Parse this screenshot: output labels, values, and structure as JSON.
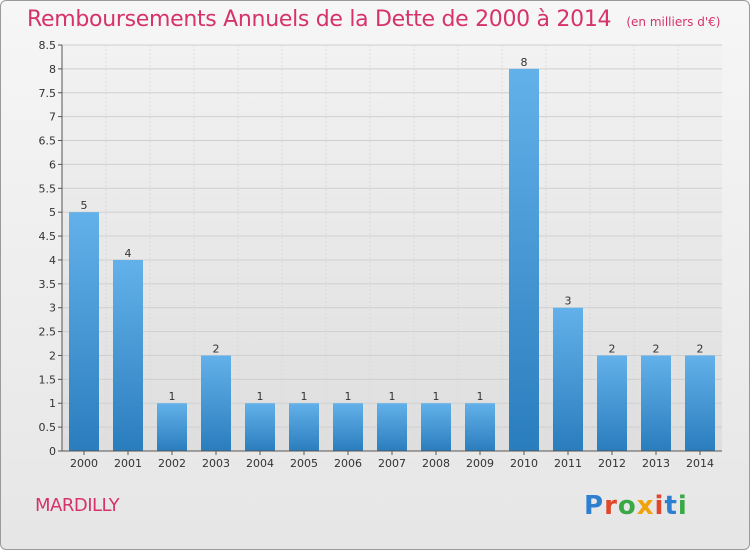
{
  "title": "Remboursements Annuels de la Dette de 2000 à 2014",
  "unit": "(en milliers d'€)",
  "location": "MARDILLY",
  "logo_text": "Proxiti",
  "colors": {
    "accent": "#d6336c",
    "bar_top": "#63b1ea",
    "bar_bottom": "#2a7dbd",
    "logo": [
      "#2f7fd0",
      "#e2472c",
      "#39a845",
      "#f0a30a",
      "#e2472c",
      "#2f7fd0",
      "#39a845"
    ]
  },
  "chart_data": {
    "type": "bar",
    "title": "Remboursements Annuels de la Dette de 2000 à 2014",
    "xlabel": "",
    "ylabel": "",
    "categories": [
      "2000",
      "2001",
      "2002",
      "2003",
      "2004",
      "2005",
      "2006",
      "2007",
      "2008",
      "2009",
      "2010",
      "2011",
      "2012",
      "2013",
      "2014"
    ],
    "values": [
      5,
      4,
      1,
      2,
      1,
      1,
      1,
      1,
      1,
      1,
      8,
      3,
      2,
      2,
      2
    ],
    "ylim": [
      0,
      8.5
    ],
    "yticks": [
      "0",
      "0.5",
      "1",
      "1.5",
      "2",
      "2.5",
      "3",
      "3.5",
      "4",
      "4.5",
      "5",
      "5.5",
      "6",
      "6.5",
      "7",
      "7.5",
      "8",
      "8.5"
    ],
    "grid": true
  }
}
